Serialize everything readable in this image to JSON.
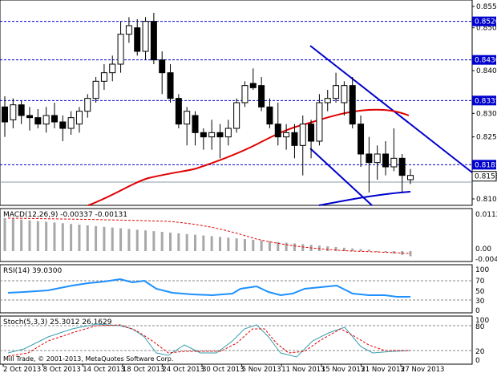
{
  "main": {
    "levels": [
      "0.8520",
      "0.8430",
      "0.8335",
      "0.8185"
    ],
    "current_price": "0.8158",
    "price_ticks": [
      "0.8555",
      "0.8505",
      "0.8405",
      "0.8305",
      "0.8250",
      "0.8105"
    ],
    "y_range": [
      0.809,
      0.857
    ]
  },
  "candles": [
    [
      0.832,
      0.8345,
      0.825,
      0.8285
    ],
    [
      0.829,
      0.834,
      0.827,
      0.8325
    ],
    [
      0.8325,
      0.8335,
      0.828,
      0.83
    ],
    [
      0.83,
      0.832,
      0.8265,
      0.8295
    ],
    [
      0.8295,
      0.8315,
      0.827,
      0.828
    ],
    [
      0.828,
      0.832,
      0.826,
      0.83
    ],
    [
      0.83,
      0.833,
      0.827,
      0.8285
    ],
    [
      0.8285,
      0.83,
      0.824,
      0.827
    ],
    [
      0.827,
      0.831,
      0.8255,
      0.8295
    ],
    [
      0.828,
      0.832,
      0.826,
      0.831
    ],
    [
      0.831,
      0.835,
      0.8295,
      0.834
    ],
    [
      0.834,
      0.839,
      0.833,
      0.838
    ],
    [
      0.838,
      0.842,
      0.836,
      0.84
    ],
    [
      0.84,
      0.844,
      0.838,
      0.842
    ],
    [
      0.842,
      0.852,
      0.84,
      0.849
    ],
    [
      0.849,
      0.853,
      0.847,
      0.851
    ],
    [
      0.8505,
      0.8525,
      0.844,
      0.845
    ],
    [
      0.845,
      0.853,
      0.843,
      0.852
    ],
    [
      0.852,
      0.854,
      0.842,
      0.843
    ],
    [
      0.843,
      0.845,
      0.835,
      0.84
    ],
    [
      0.84,
      0.842,
      0.833,
      0.834
    ],
    [
      0.834,
      0.835,
      0.827,
      0.828
    ],
    [
      0.828,
      0.832,
      0.823,
      0.831
    ],
    [
      0.83,
      0.831,
      0.823,
      0.826
    ],
    [
      0.826,
      0.827,
      0.822,
      0.825
    ],
    [
      0.825,
      0.829,
      0.822,
      0.826
    ],
    [
      0.826,
      0.828,
      0.82,
      0.825
    ],
    [
      0.825,
      0.829,
      0.823,
      0.827
    ],
    [
      0.827,
      0.834,
      0.826,
      0.833
    ],
    [
      0.833,
      0.838,
      0.832,
      0.837
    ],
    [
      0.8375,
      0.841,
      0.836,
      0.8365
    ],
    [
      0.837,
      0.839,
      0.831,
      0.832
    ],
    [
      0.832,
      0.834,
      0.827,
      0.828
    ],
    [
      0.828,
      0.833,
      0.823,
      0.825
    ],
    [
      0.825,
      0.828,
      0.822,
      0.826
    ],
    [
      0.826,
      0.828,
      0.82,
      0.823
    ],
    [
      0.823,
      0.83,
      0.816,
      0.828
    ],
    [
      0.828,
      0.829,
      0.82,
      0.824
    ],
    [
      0.824,
      0.835,
      0.823,
      0.833
    ],
    [
      0.833,
      0.836,
      0.831,
      0.834
    ],
    [
      0.834,
      0.84,
      0.833,
      0.837
    ],
    [
      0.833,
      0.838,
      0.83,
      0.837
    ],
    [
      0.837,
      0.839,
      0.827,
      0.828
    ],
    [
      0.828,
      0.83,
      0.818,
      0.821
    ],
    [
      0.821,
      0.825,
      0.812,
      0.819
    ],
    [
      0.819,
      0.823,
      0.815,
      0.821
    ],
    [
      0.821,
      0.824,
      0.816,
      0.818
    ],
    [
      0.818,
      0.827,
      0.817,
      0.82
    ],
    [
      0.82,
      0.821,
      0.812,
      0.816
    ],
    [
      0.815,
      0.8175,
      0.814,
      0.816
    ]
  ],
  "macd": {
    "label": "MACD(12,26,9) -0.00337 -0.00131",
    "ticks": [
      "0.01127",
      "0.00",
      "-0.00406"
    ]
  },
  "rsi": {
    "label": "RSI(14) 39.0300",
    "ticks": [
      "100",
      "70",
      "50",
      "30",
      "0"
    ]
  },
  "stoch": {
    "label": "Stoch(5,3,3) 25.3012 26.1629",
    "ticks": [
      "100",
      "80",
      "20",
      "0"
    ]
  },
  "copyright": "Mill Trade, © 2001-2013, MetaQuotes Software Corp.",
  "dates": [
    "2 Oct 2013",
    "8 Oct 2013",
    "14 Oct 2013",
    "18 Oct 2013",
    "24 Oct 2013",
    "30 Oct 2013",
    "5 Nov 2013",
    "11 Nov 2013",
    "15 Nov 2013",
    "21 Nov 2013",
    "27 Nov 2013"
  ],
  "colors": {
    "level": "#0000cc",
    "ma": "#e00000",
    "ma_blue": "#0000cc",
    "indicator": "#1e90ff",
    "bull": "#ffffff",
    "bear": "#000000"
  }
}
